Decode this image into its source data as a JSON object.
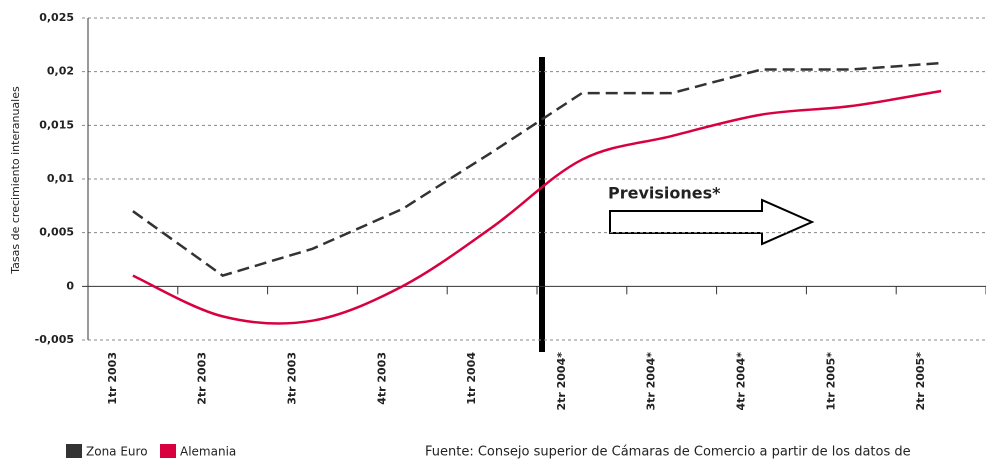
{
  "chart_data": {
    "type": "line",
    "y_label": "Tasas de crecimiento interanuales",
    "categories": [
      "1tr 2003",
      "2tr 2003",
      "3tr 2003",
      "4tr 2003",
      "1tr 2004",
      "2tr 2004*",
      "3tr 2004*",
      "4tr 2004*",
      "1tr 2005*",
      "2tr 2005*"
    ],
    "series": [
      {
        "name": "Zona Euro",
        "color": "#333333",
        "dashed": true,
        "values": [
          0.007,
          0.001,
          0.0035,
          0.0072,
          0.0125,
          0.018,
          0.018,
          0.0202,
          0.0202,
          0.0208
        ]
      },
      {
        "name": "Alemania",
        "color": "#d8003f",
        "dashed": false,
        "values": [
          0.001,
          -0.0028,
          -0.0032,
          0.0,
          0.0055,
          0.0118,
          0.014,
          0.016,
          0.0168,
          0.0182
        ]
      }
    ],
    "ylim": [
      -0.005,
      0.025
    ],
    "yticks": [
      {
        "value": -0.005,
        "label": "-0,005"
      },
      0,
      {
        "value": 0.005,
        "label": "0,005"
      },
      {
        "value": 0.01,
        "label": "0,01"
      },
      {
        "value": 0.015,
        "label": "0,015"
      },
      {
        "value": 0.02,
        "label": "0,02"
      },
      {
        "value": 0.025,
        "label": "0,025"
      }
    ],
    "grid": true,
    "annotation": "Previsiones*",
    "source": "Fuente: Consejo superior de Cámaras de Comercio a partir de los datos de"
  }
}
